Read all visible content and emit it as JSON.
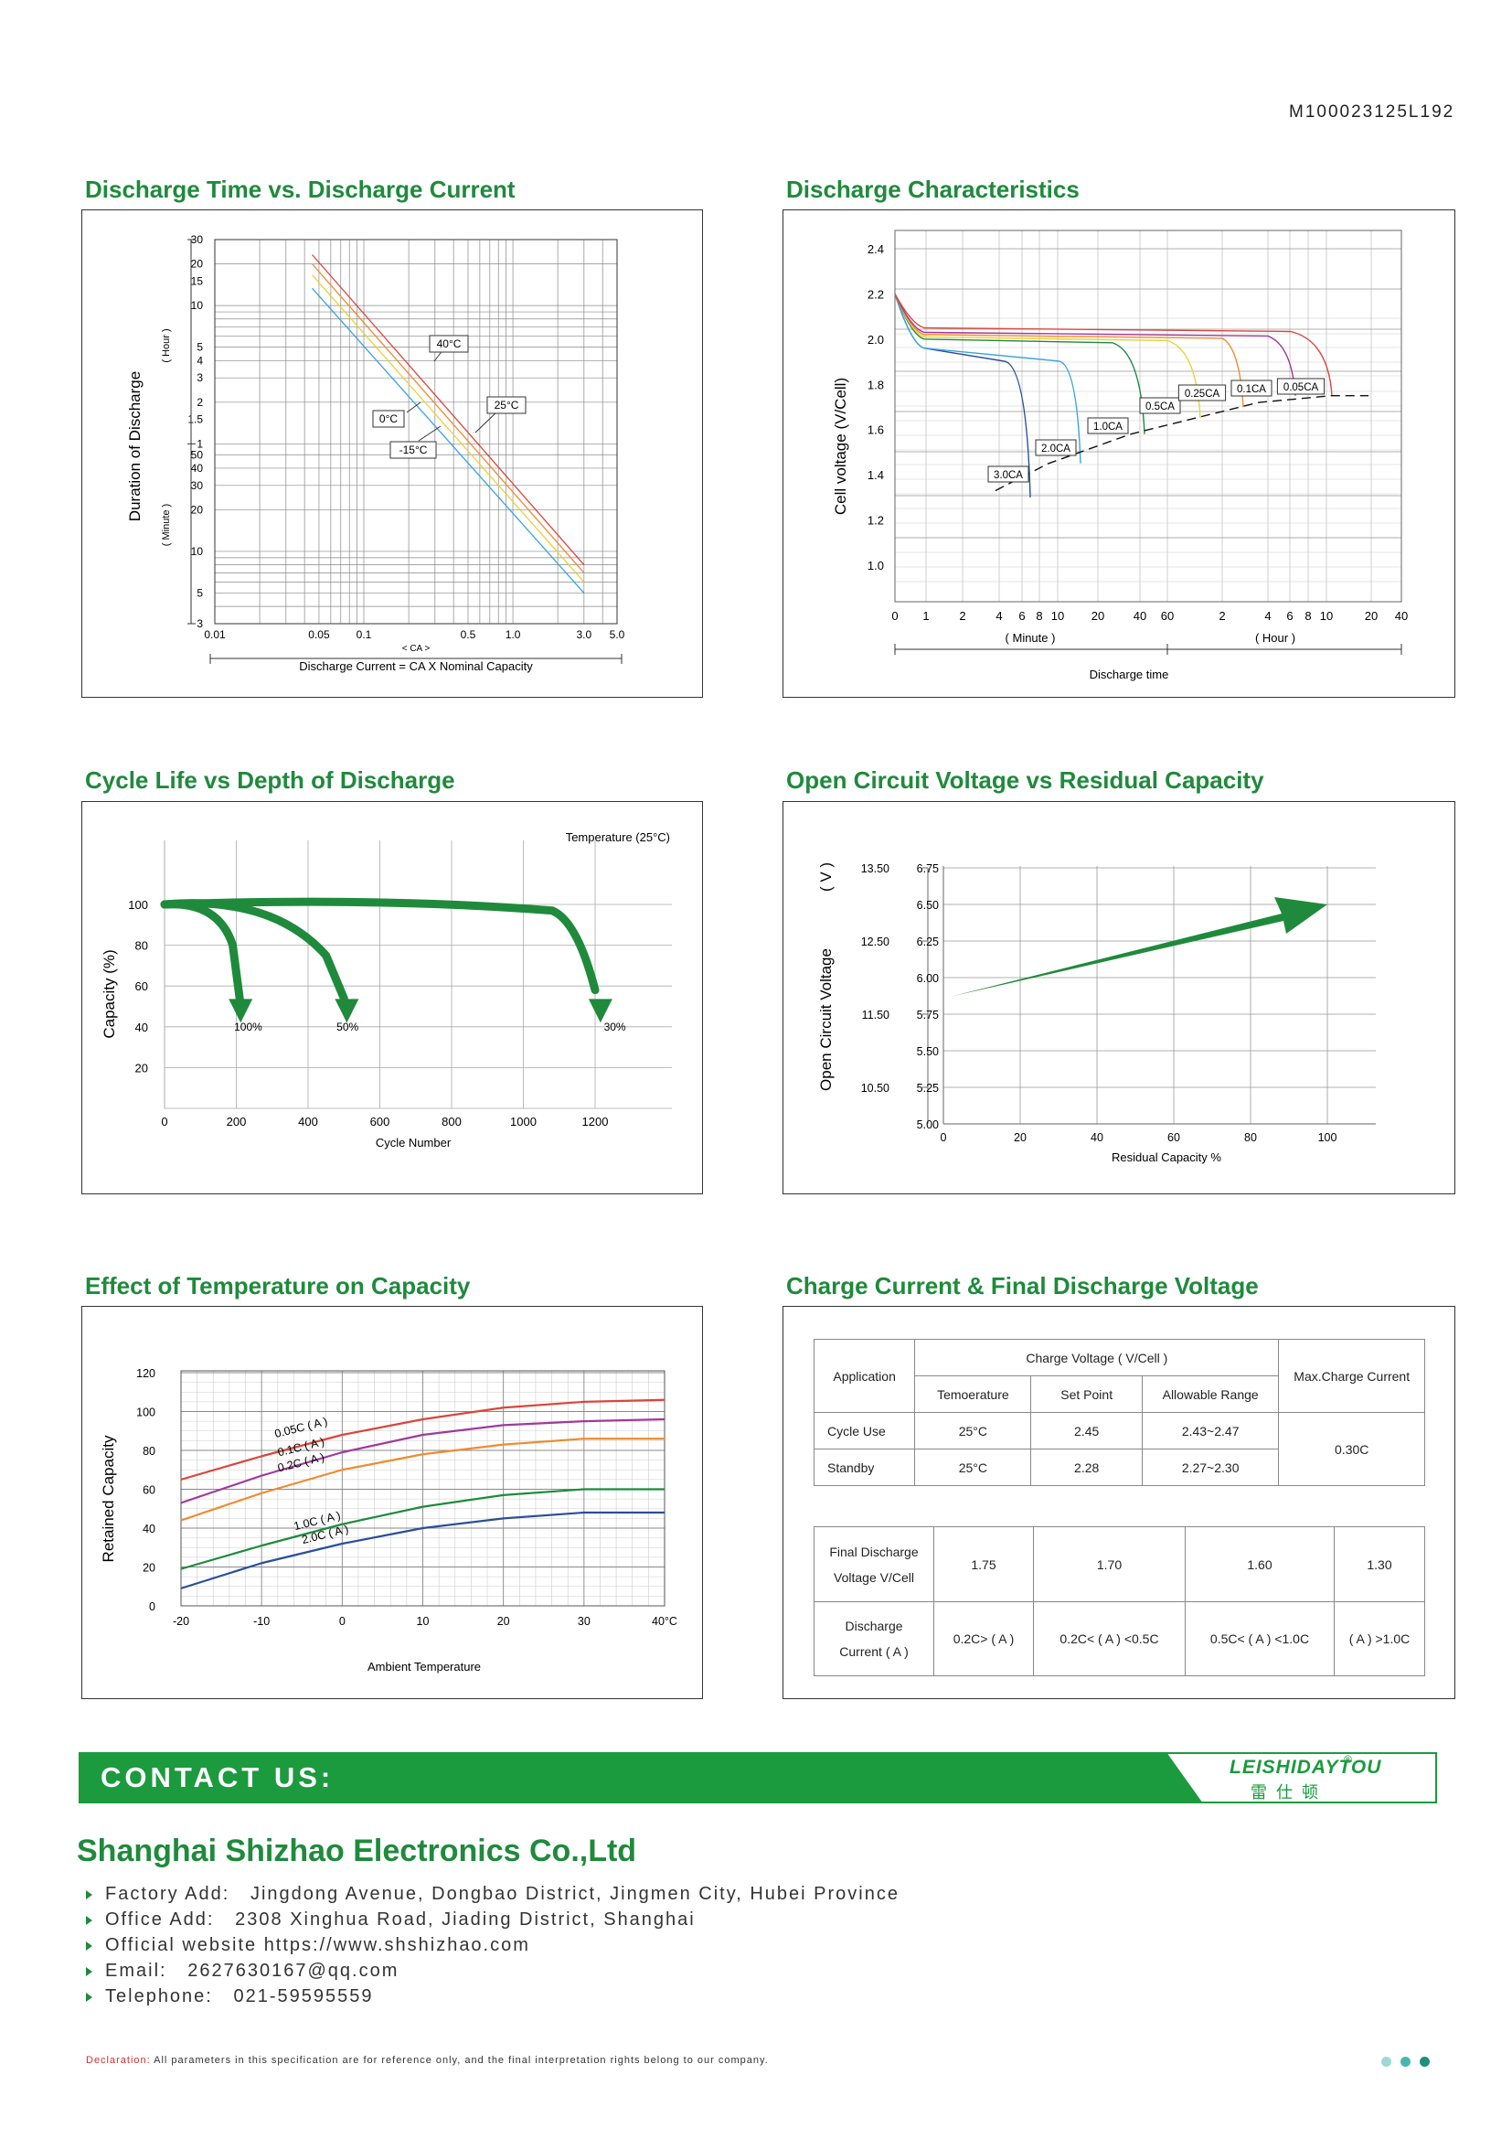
{
  "doc_code": "M100023125L192",
  "sections": {
    "discharge_time": "Discharge Time vs. Discharge Current",
    "discharge_char": "Discharge Characteristics",
    "cycle_life": "Cycle Life vs Depth of Discharge",
    "ocv": "Open Circuit Voltage vs Residual Capacity",
    "temperature": "Effect of Temperature on Capacity",
    "charge_current": "Charge Current & Final Discharge Voltage"
  },
  "colors": {
    "green": "#1f8a3c",
    "red": "#d9463b",
    "orange": "#f08a2e",
    "yellow": "#e8d23a",
    "blue": "#3aa3dd",
    "navy": "#2a4f9a",
    "purple": "#a0399c"
  },
  "chart_data": [
    {
      "type": "line",
      "title": "Discharge Time vs. Discharge Current",
      "xlabel": "Discharge Current = CA X Nominal Capacity",
      "x_unit_label": "< CA >",
      "ylabel": "Duration of Discharge",
      "y_unit_hour": "( Hour )",
      "y_unit_minute": "( Minute )",
      "x_scale": "log",
      "x_ticks": [
        "0.01",
        "0.05",
        "0.1",
        "0.5",
        "1.0",
        "3.0",
        "5.0"
      ],
      "y_ticks_hour": [
        "30",
        "20",
        "15",
        "10",
        "5",
        "4",
        "3",
        "2",
        "1.5",
        "1"
      ],
      "y_ticks_minute": [
        "50",
        "40",
        "30",
        "20",
        "10",
        "5",
        "3"
      ],
      "series": [
        {
          "name": "40°C",
          "x": [
            0.045,
            3.0
          ],
          "y_minutes": [
            1400,
            8
          ]
        },
        {
          "name": "25°C",
          "x": [
            0.045,
            3.0
          ],
          "y_minutes": [
            1200,
            7
          ]
        },
        {
          "name": "0°C",
          "x": [
            0.045,
            3.0
          ],
          "y_minutes": [
            1000,
            6
          ]
        },
        {
          "name": "-15°C",
          "x": [
            0.045,
            3.0
          ],
          "y_minutes": [
            800,
            5
          ]
        }
      ]
    },
    {
      "type": "line",
      "title": "Discharge Characteristics",
      "xlabel": "Discharge time",
      "x_unit_minute": "( Minute )",
      "x_unit_hour": "( Hour )",
      "ylabel": "Cell voltage (V/Cell)",
      "x_ticks": [
        "0",
        "1",
        "2",
        "4",
        "6",
        "8",
        "10",
        "20",
        "40",
        "60",
        "2",
        "4",
        "6",
        "8",
        "10",
        "20",
        "40"
      ],
      "y_ticks": [
        "2.4",
        "2.2",
        "2.0",
        "1.8",
        "1.6",
        "1.4",
        "1.2",
        "1.0"
      ],
      "ylim": [
        1.0,
        2.4
      ],
      "series": [
        {
          "name": "3.0CA",
          "final_voltage": 1.33
        },
        {
          "name": "2.0CA",
          "final_voltage": 1.45
        },
        {
          "name": "1.0CA",
          "final_voltage": 1.58
        },
        {
          "name": "0.5CA",
          "final_voltage": 1.65
        },
        {
          "name": "0.25CA",
          "final_voltage": 1.7
        },
        {
          "name": "0.1CA",
          "final_voltage": 1.75
        },
        {
          "name": "0.05CA",
          "final_voltage": 1.75
        }
      ]
    },
    {
      "type": "line",
      "title": "Cycle Life vs Depth of Discharge",
      "note": "Temperature  (25°C)",
      "xlabel": "Cycle Number",
      "ylabel": "Capacity  (%)",
      "x_ticks": [
        "0",
        "200",
        "400",
        "600",
        "800",
        "1000",
        "1200"
      ],
      "y_ticks": [
        "100",
        "80",
        "60",
        "40",
        "20"
      ],
      "xlim": [
        0,
        1400
      ],
      "ylim": [
        0,
        110
      ],
      "series": [
        {
          "name": "100%",
          "x": [
            0,
            150,
            200
          ],
          "y": [
            100,
            100,
            45
          ]
        },
        {
          "name": "50%",
          "x": [
            0,
            250,
            500
          ],
          "y": [
            100,
            103,
            45
          ]
        },
        {
          "name": "30%",
          "x": [
            0,
            1100,
            1230
          ],
          "y": [
            100,
            100,
            45
          ]
        }
      ]
    },
    {
      "type": "line",
      "title": "Open Circuit Voltage vs Residual Capacity",
      "xlabel": "Residual Capacity %",
      "ylabel": "Open Circuit Voltage",
      "y_unit": "( V )",
      "x_ticks": [
        "0",
        "20",
        "40",
        "60",
        "80",
        "100"
      ],
      "y_ticks_left": [
        "13.50",
        "12.50",
        "11.50",
        "10.50"
      ],
      "y_ticks_right": [
        "6.75",
        "6.50",
        "6.25",
        "6.00",
        "5.75",
        "5.50",
        "5.25",
        "5.00"
      ],
      "series": [
        {
          "name": "OCV",
          "x": [
            0,
            100
          ],
          "y": [
            5.87,
            6.5
          ]
        }
      ]
    },
    {
      "type": "line",
      "title": "Effect of Temperature on Capacity",
      "xlabel": "Ambient Temperature",
      "ylabel": "Retained Capacity",
      "x_ticks": [
        "-20",
        "-10",
        "0",
        "10",
        "20",
        "30",
        "40°C"
      ],
      "y_ticks": [
        "120",
        "100",
        "80",
        "60",
        "40",
        "20",
        "0"
      ],
      "xlim": [
        -20,
        40
      ],
      "ylim": [
        0,
        120
      ],
      "series": [
        {
          "name": "0.05C ( A )",
          "x": [
            -20,
            -10,
            0,
            10,
            20,
            30,
            40
          ],
          "y": [
            65,
            77,
            88,
            96,
            102,
            105,
            106
          ]
        },
        {
          "name": "0.1C ( A )",
          "x": [
            -20,
            -10,
            0,
            10,
            20,
            30,
            40
          ],
          "y": [
            53,
            67,
            79,
            88,
            93,
            95,
            96
          ]
        },
        {
          "name": "0.2C ( A )",
          "x": [
            -20,
            -10,
            0,
            10,
            20,
            30,
            40
          ],
          "y": [
            44,
            58,
            70,
            78,
            83,
            86,
            86
          ]
        },
        {
          "name": "1.0C ( A )",
          "x": [
            -20,
            -10,
            0,
            10,
            20,
            30,
            40
          ],
          "y": [
            19,
            31,
            42,
            51,
            57,
            60,
            60
          ]
        },
        {
          "name": "2.0C ( A )",
          "x": [
            -20,
            -10,
            0,
            10,
            20,
            30,
            40
          ],
          "y": [
            9,
            22,
            32,
            40,
            45,
            48,
            48
          ]
        }
      ]
    }
  ],
  "charge_table": {
    "application": "Application",
    "charge_voltage": "Charge Voltage ( V/Cell )",
    "temperature": "Temoerature",
    "set_point": "Set Point",
    "allowable_range": "Allowable Range",
    "max_charge": "Max.Charge Current",
    "rows": [
      {
        "app": "Cycle Use",
        "temp": "25°C",
        "set": "2.45",
        "range": "2.43~2.47"
      },
      {
        "app": "Standby",
        "temp": "25°C",
        "set": "2.28",
        "range": "2.27~2.30"
      }
    ],
    "max_value": "0.30C"
  },
  "discharge_table": {
    "row1_label_line1": "Final Discharge",
    "row1_label_line2": "Voltage V/Cell",
    "row2_label_line1": "Discharge",
    "row2_label_line2": "Current ( A )",
    "voltages": [
      "1.75",
      "1.70",
      "1.60",
      "1.30"
    ],
    "currents": [
      "0.2C> ( A )",
      "0.2C< ( A ) <0.5C",
      "0.5C< ( A ) <1.0C",
      "( A ) >1.0C"
    ]
  },
  "contact": {
    "label": "CONTACT US:",
    "logo_en": "LEISHIDAYTOU",
    "logo_cn": "雷仕顿",
    "logo_reg": "®",
    "company": "Shanghai Shizhao Electronics Co.,Ltd",
    "lines": [
      "Factory Add:   Jingdong Avenue, Dongbao District, Jingmen City, Hubei Province",
      "Office Add:   2308 Xinghua Road, Jiading District, Shanghai",
      "Official website https://www.shshizhao.com",
      "Email:   2627630167@qq.com",
      "Telephone:   021-59595559"
    ]
  },
  "declaration": {
    "label": "Declaration:",
    "text": " All parameters in this specification are for reference only, and the final interpretation rights belong to our company."
  }
}
